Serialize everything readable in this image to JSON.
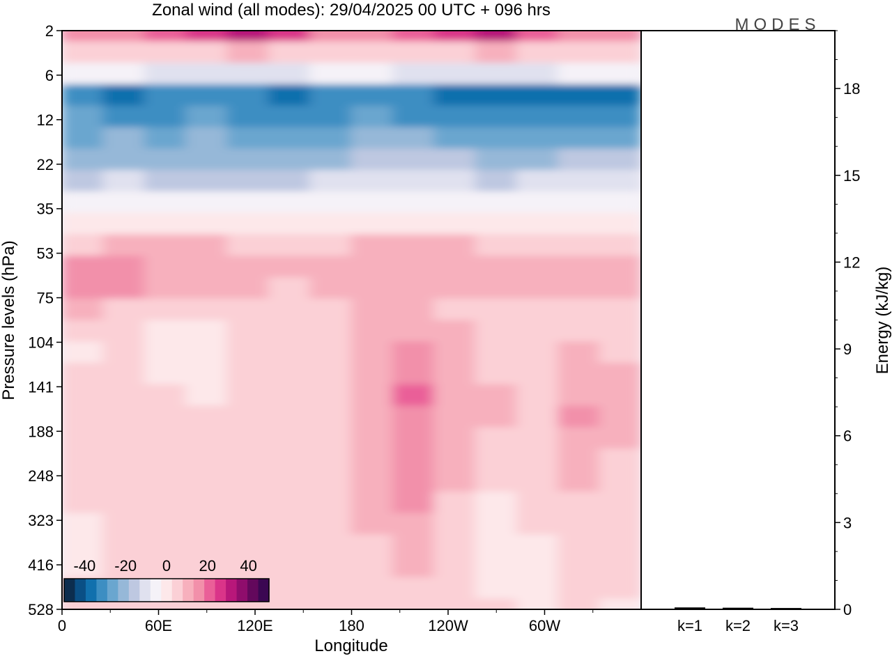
{
  "title": "Zonal wind (all modes):  29/04/2025  00 UTC  + 096 hrs",
  "logo": "MODES",
  "chart_data": [
    {
      "type": "heatmap",
      "xlabel": "Longitude",
      "ylabel": "Pressure levels (hPa)",
      "x_ticks": [
        "0",
        "60E",
        "120E",
        "180",
        "120W",
        "60W"
      ],
      "x_tick_deg": [
        0,
        60,
        120,
        180,
        240,
        300
      ],
      "xlim": [
        0,
        360
      ],
      "y_ticks": [
        "2",
        "6",
        "12",
        "22",
        "35",
        "53",
        "75",
        "104",
        "141",
        "188",
        "248",
        "323",
        "416",
        "528"
      ],
      "y_scale": "level index (top to bottom)",
      "colorbar": {
        "tick_labels": [
          "-40",
          "-20",
          "0",
          "20",
          "40"
        ],
        "range": [
          -50,
          50
        ],
        "step": 5,
        "colors": [
          "#0c2d4e",
          "#0a4f85",
          "#1170ad",
          "#3d8ec2",
          "#6aa6cf",
          "#96b8d8",
          "#bec8e1",
          "#e0e1ef",
          "#f5f2f8",
          "#fde8ea",
          "#fbd0d6",
          "#f7b0bd",
          "#f290aa",
          "#ea5f98",
          "#da3489",
          "#b8177a",
          "#8f0d6c",
          "#63085c",
          "#3b0752"
        ]
      },
      "bands": [
        {
          "level": "2",
          "values": [
            10,
            12,
            15,
            20,
            26,
            22,
            14,
            12,
            16,
            24,
            27,
            18,
            14,
            12
          ]
        },
        {
          "level": "3",
          "values": [
            2,
            2,
            3,
            4,
            5,
            4,
            3,
            3,
            3,
            4,
            5,
            4,
            3,
            2
          ]
        },
        {
          "level": "4",
          "values": [
            -10,
            -10,
            -11,
            -12,
            -12,
            -11,
            -10,
            -10,
            -11,
            -12,
            -12,
            -11,
            -10,
            -10
          ]
        },
        {
          "level": "6",
          "values": [
            -34,
            -36,
            -32,
            -33,
            -35,
            -36,
            -34,
            -32,
            -33,
            -36,
            -38,
            -37,
            -40,
            -36
          ]
        },
        {
          "level": "9",
          "values": [
            -30,
            -31,
            -32,
            -30,
            -31,
            -32,
            -31,
            -30,
            -31,
            -32,
            -33,
            -34,
            -35,
            -33
          ]
        },
        {
          "level": "12",
          "values": [
            -26,
            -25,
            -27,
            -24,
            -26,
            -28,
            -27,
            -25,
            -24,
            -26,
            -28,
            -28,
            -27,
            -26
          ]
        },
        {
          "level": "17",
          "values": [
            -22,
            -21,
            -24,
            -21,
            -23,
            -24,
            -22,
            -20,
            -19,
            -20,
            -22,
            -22,
            -20,
            -19
          ]
        },
        {
          "level": "22",
          "values": [
            -16,
            -15,
            -17,
            -16,
            -17,
            -16,
            -15,
            -14,
            -13,
            -14,
            -16,
            -15,
            -14,
            -13
          ]
        },
        {
          "level": "28",
          "values": [
            -8,
            -7,
            -8,
            -8,
            -9,
            -8,
            -7,
            -6,
            -6,
            -7,
            -8,
            -7,
            -6,
            -6
          ]
        },
        {
          "level": "35",
          "values": [
            -2,
            -2,
            -2,
            -3,
            -3,
            -2,
            -2,
            -1,
            -1,
            -2,
            -2,
            -2,
            -1,
            -1
          ]
        },
        {
          "level": "43",
          "values": [
            4,
            5,
            6,
            5,
            4,
            3,
            4,
            5,
            5,
            6,
            4,
            3,
            4,
            4
          ]
        },
        {
          "level": "53",
          "values": [
            12,
            10,
            8,
            7,
            6,
            5,
            5,
            6,
            8,
            7,
            6,
            8,
            9,
            8
          ]
        },
        {
          "level": "63",
          "values": [
            14,
            10,
            7,
            6,
            5,
            4,
            5,
            5,
            6,
            5,
            6,
            7,
            8,
            7
          ]
        },
        {
          "level": "75",
          "values": [
            5,
            4,
            3,
            2,
            3,
            3,
            4,
            5,
            6,
            4,
            3,
            2,
            3,
            4
          ]
        },
        {
          "level": "88",
          "values": [
            0,
            0,
            -2,
            -3,
            1,
            2,
            4,
            6,
            8,
            5,
            3,
            2,
            4,
            3
          ]
        },
        {
          "level": "104",
          "values": [
            -1,
            1,
            -2,
            -3,
            0,
            1,
            4,
            7,
            12,
            6,
            3,
            2,
            5,
            4
          ]
        },
        {
          "level": "120",
          "values": [
            0,
            2,
            -1,
            -2,
            1,
            1,
            4,
            6,
            13,
            6,
            4,
            2,
            7,
            5
          ]
        },
        {
          "level": "141",
          "values": [
            1,
            4,
            0,
            -1,
            1,
            1,
            3,
            6,
            16,
            6,
            5,
            3,
            9,
            6
          ]
        },
        {
          "level": "164",
          "values": [
            1,
            4,
            1,
            0,
            2,
            1,
            3,
            7,
            12,
            7,
            5,
            3,
            10,
            6
          ]
        },
        {
          "level": "188",
          "values": [
            1,
            4,
            1,
            0,
            2,
            1,
            3,
            7,
            12,
            7,
            4,
            3,
            8,
            5
          ]
        },
        {
          "level": "218",
          "values": [
            1,
            3,
            1,
            0,
            1,
            1,
            2,
            6,
            11,
            6,
            3,
            3,
            7,
            4
          ]
        },
        {
          "level": "248",
          "values": [
            1,
            3,
            1,
            0,
            1,
            1,
            3,
            6,
            11,
            5,
            2,
            2,
            6,
            3
          ]
        },
        {
          "level": "285",
          "values": [
            0,
            2,
            0,
            0,
            1,
            1,
            3,
            5,
            10,
            4,
            -1,
            1,
            4,
            2
          ]
        },
        {
          "level": "323",
          "values": [
            -2,
            1,
            0,
            0,
            1,
            2,
            3,
            5,
            9,
            3,
            -3,
            0,
            3,
            1
          ]
        },
        {
          "level": "368",
          "values": [
            -2,
            1,
            1,
            1,
            2,
            2,
            3,
            4,
            6,
            3,
            -3,
            -1,
            2,
            1
          ]
        },
        {
          "level": "416",
          "values": [
            -1,
            1,
            2,
            2,
            2,
            3,
            3,
            4,
            5,
            3,
            -2,
            -2,
            2,
            1
          ]
        },
        {
          "level": "470",
          "values": [
            0,
            1,
            1,
            2,
            2,
            3,
            3,
            4,
            4,
            3,
            -1,
            -2,
            2,
            0
          ]
        },
        {
          "level": "528",
          "values": [
            0,
            1,
            1,
            1,
            2,
            2,
            2,
            3,
            4,
            2,
            0,
            -1,
            1,
            -2
          ]
        }
      ]
    },
    {
      "type": "bar",
      "categories": [
        "k=1",
        "k=2",
        "k=3"
      ],
      "values": [
        0.03,
        0.02,
        0.01
      ],
      "ylabel": "Energy (kJ/kg)",
      "y_ticks": [
        "0",
        "3",
        "6",
        "9",
        "12",
        "15",
        "18"
      ],
      "ylim": [
        0,
        20
      ]
    }
  ]
}
